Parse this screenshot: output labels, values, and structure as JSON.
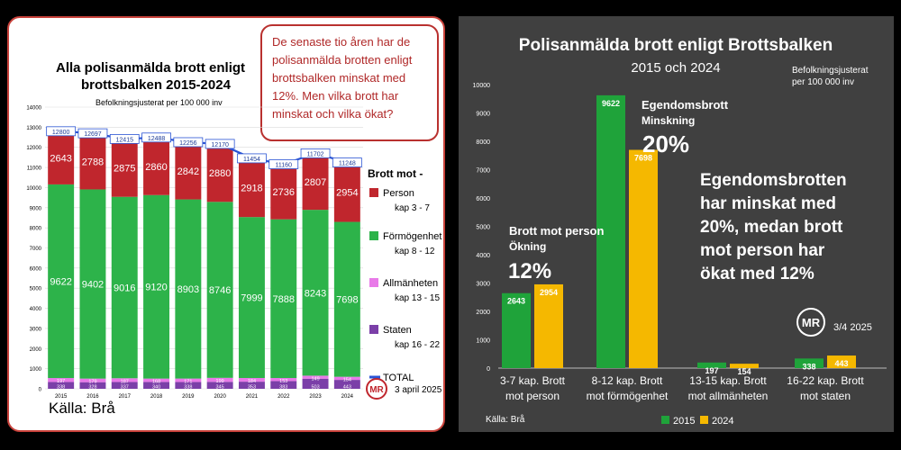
{
  "left_chart": {
    "type": "stacked_bar",
    "title_line1": "Alla polisanmälda brott enligt",
    "title_line2": "brottsbalken 2015-2024",
    "subtitle": "Befolkningsjusterat per 100 000 inv",
    "callout": [
      "De senaste tio åren har de",
      "polisanmälda brotten enligt",
      "brottsbalken minskat med",
      "12%.  Men vilka brott har",
      "minskat och vilka ökat?"
    ],
    "categories": [
      "2015",
      "2016",
      "2017",
      "2018",
      "2019",
      "2020",
      "2021",
      "2022",
      "2023",
      "2024"
    ],
    "y_ticks": [
      0,
      1000,
      2000,
      3000,
      4000,
      5000,
      6000,
      7000,
      8000,
      9000,
      10000,
      11000,
      12000,
      13000,
      14000
    ],
    "ylim": [
      0,
      14000
    ],
    "series": [
      {
        "name": "Staten",
        "values": [
          338,
          328,
          337,
          340,
          338,
          345,
          353,
          383,
          503,
          443
        ]
      },
      {
        "name": "Allmänheten",
        "values": [
          197,
          179,
          187,
          168,
          171,
          199,
          184,
          153,
          149,
          154
        ]
      },
      {
        "name": "Förmögenhet",
        "values": [
          9622,
          9402,
          9016,
          9120,
          8903,
          8746,
          7999,
          7888,
          8243,
          7698
        ]
      },
      {
        "name": "Person",
        "values": [
          2643,
          2788,
          2875,
          2860,
          2842,
          2880,
          2918,
          2736,
          2807,
          2954
        ]
      }
    ],
    "totals": [
      12800,
      12697,
      12415,
      12488,
      12256,
      12170,
      11454,
      11160,
      11702,
      11248
    ],
    "legend_title": "Brott mot -",
    "legend": [
      {
        "label": "Person",
        "sub": "kap 3 - 7",
        "color": "#c0262d"
      },
      {
        "label": "Förmögenhet",
        "sub": "kap 8 - 12",
        "color": "#2db34a"
      },
      {
        "label": "Allmänheten",
        "sub": "kap 13 - 15",
        "color": "#e87ae8"
      },
      {
        "label": "Staten",
        "sub": "kap 16 - 22",
        "color": "#7b3fa8"
      },
      {
        "label": "TOTAL",
        "sub": "",
        "color": "#2a54d4"
      }
    ],
    "source": "Källa: Brå",
    "logo": "MR",
    "date": "3 april 2025"
  },
  "right_chart": {
    "type": "bar",
    "title": "Polisanmälda brott enligt Brottsbalken",
    "subtitle": "2015 och 2024",
    "corner_note": [
      "Befolkningsjusterat",
      "per 100 000 inv"
    ],
    "categories": [
      [
        "3-7 kap. Brott",
        "mot person"
      ],
      [
        "8-12 kap. Brott",
        "mot förmögenhet"
      ],
      [
        "13-15 kap. Brott",
        "mot allmänheten"
      ],
      [
        "16-22 kap. Brott",
        "mot staten"
      ]
    ],
    "series": [
      {
        "name": "2015",
        "color": "#1fa33a",
        "values": [
          2643,
          9622,
          197,
          338
        ]
      },
      {
        "name": "2024",
        "color": "#f5b800",
        "values": [
          2954,
          7698,
          154,
          443
        ]
      }
    ],
    "y_ticks": [
      0,
      1000,
      2000,
      3000,
      4000,
      5000,
      6000,
      7000,
      8000,
      9000,
      10000
    ],
    "ylim": [
      0,
      10000
    ],
    "annotation_person": {
      "line1": "Brott mot person",
      "line2": "Ökning",
      "pct": "12%"
    },
    "annotation_property": {
      "line1": "Egendomsbrott",
      "line2": "Minskning",
      "pct": "20%"
    },
    "summary": [
      "Egendomsbrotten",
      "har minskat med",
      "20%, medan brott",
      "mot person har",
      "ökat med 12%"
    ],
    "logo": "MR",
    "date": "3/4 2025",
    "source": "Källa: Brå"
  }
}
